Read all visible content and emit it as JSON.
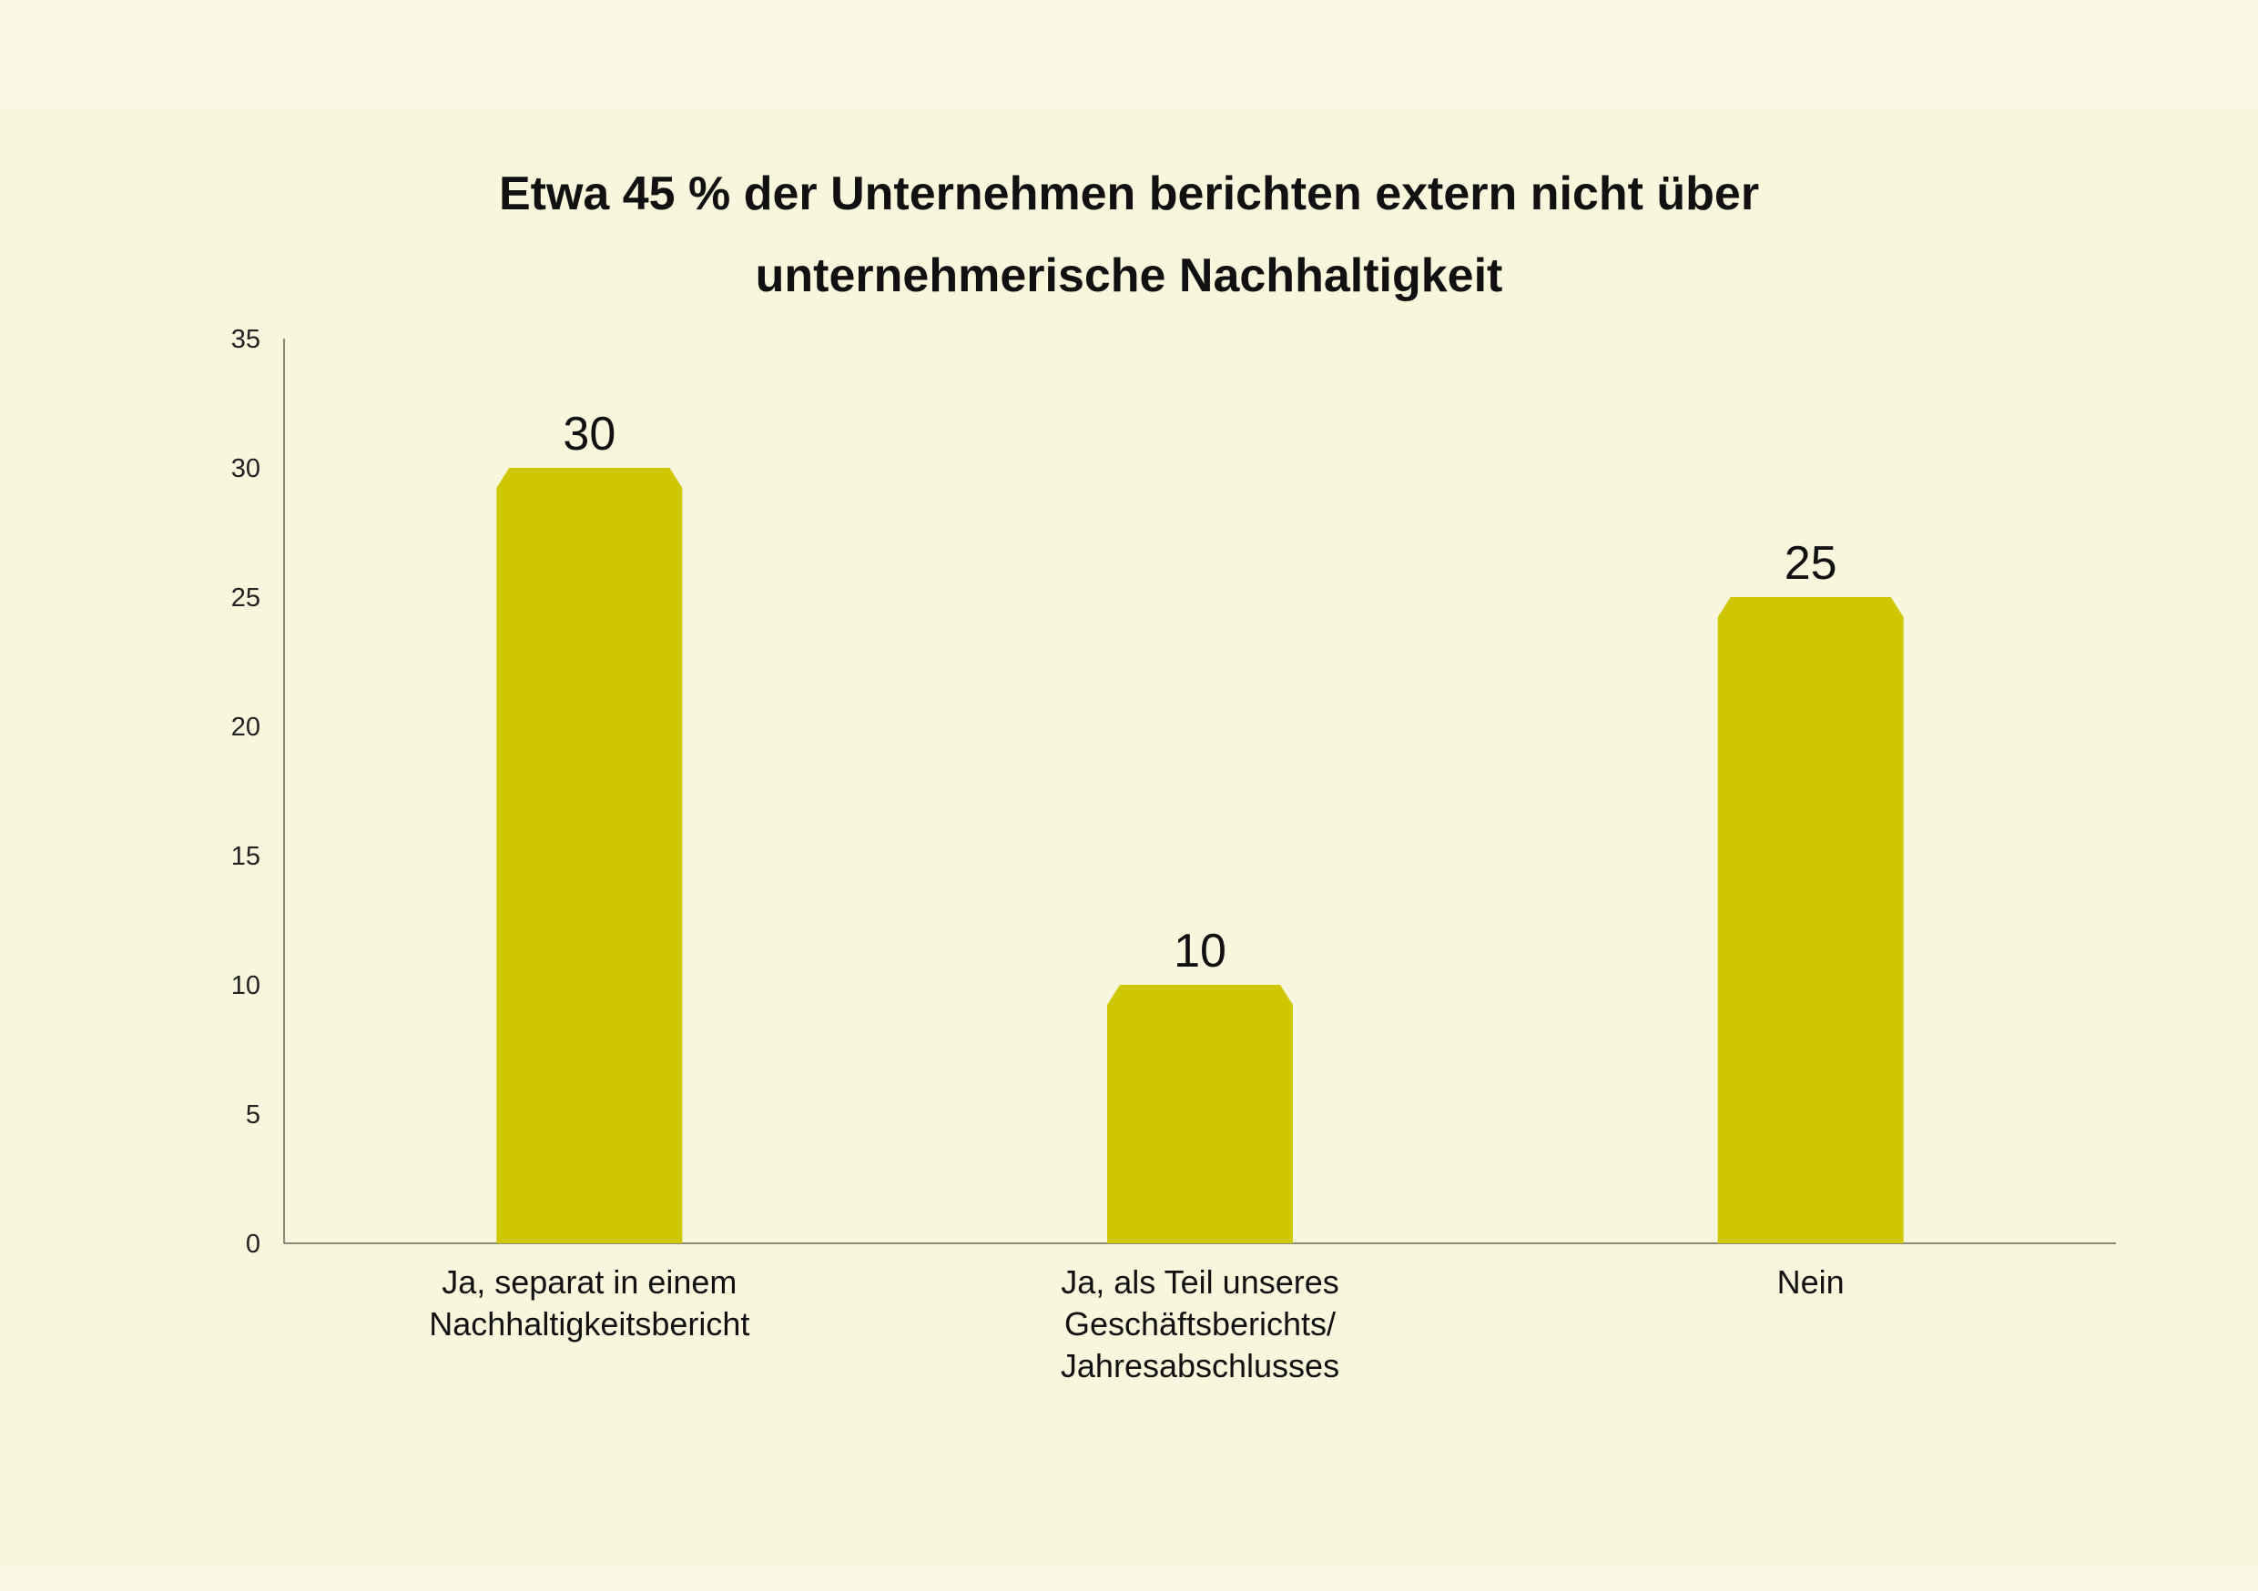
{
  "title_lines": [
    "Etwa 45 % der Unternehmen berichten extern nicht über",
    "unternehmerische Nachhaltigkeit"
  ],
  "colors": {
    "background": "#f8f6dc",
    "bar": "#cfc800",
    "axis": "#8a8a7a"
  },
  "chart_data": {
    "type": "bar",
    "title": "Etwa 45 % der Unternehmen berichten extern nicht über unternehmerische Nachhaltigkeit",
    "categories": [
      "Ja, separat in einem\nNachhaltigkeitsbericht",
      "Ja, als Teil unseres\nGeschäftsberichts/\nJahresabschlusses",
      "Nein"
    ],
    "values": [
      30,
      10,
      25
    ],
    "data_labels": [
      "30",
      "10",
      "25"
    ],
    "ylim": [
      0,
      35
    ],
    "yticks": [
      0,
      5,
      10,
      15,
      20,
      25,
      30,
      35
    ],
    "xlabel": "",
    "ylabel": "",
    "grid": false,
    "legend": "none"
  }
}
